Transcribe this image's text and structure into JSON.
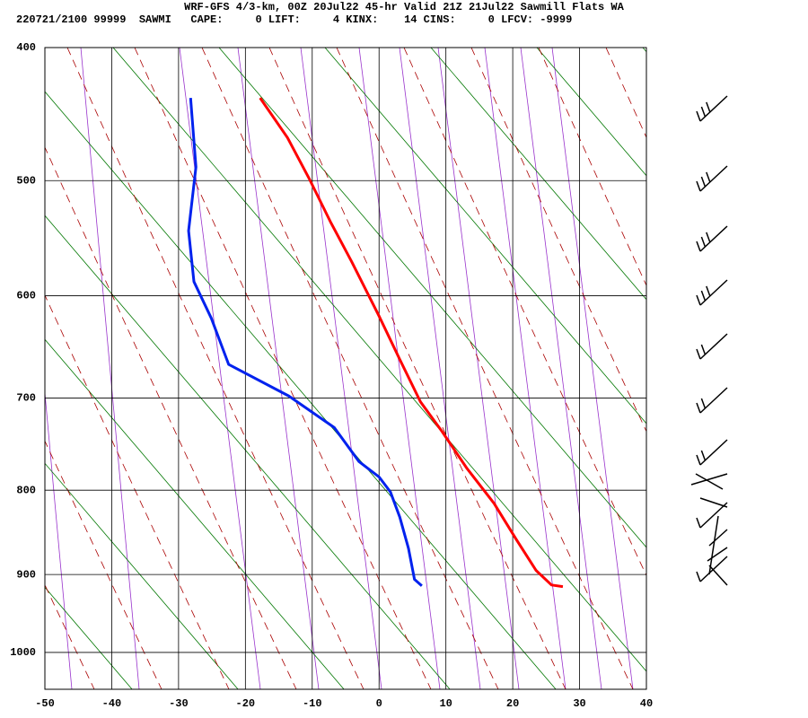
{
  "chart_data": {
    "type": "skewt",
    "title": "WRF-GFS 4/3-km, 00Z 20Jul22 45-hr Valid 21Z 21Jul22 Sawmill Flats WA",
    "subtitle": "220721/2100 99999  SAWMI   CAPE:     0 LIFT:     4 KINX:    14 CINS:     0 LFCV: -9999",
    "xlim": [
      -50,
      40
    ],
    "xticks": [
      -50,
      -40,
      -30,
      -20,
      -10,
      0,
      10,
      20,
      30,
      40
    ],
    "ylim": [
      1050,
      400
    ],
    "yticks": [
      400,
      500,
      600,
      700,
      800,
      900,
      1000
    ],
    "y_scale_exponent": 0.286,
    "grid": true,
    "series": [
      {
        "name": "Temperature",
        "color": "#ff0000",
        "x": [
          -17.8,
          -13.7,
          -10.4,
          -7.3,
          -4.1,
          0,
          3.1,
          6.2,
          9.4,
          13.1,
          17.2,
          20.5,
          23.5,
          25.8,
          27.5
        ],
        "y": [
          436,
          466,
          499,
          534,
          569,
          619,
          661,
          704,
          735,
          775,
          815,
          857,
          895,
          913,
          915
        ]
      },
      {
        "name": "Dewpoint",
        "color": "#0022ee",
        "x": [
          -28.2,
          -27.4,
          -28.5,
          -27.7,
          -25.1,
          -22.5,
          -13.5,
          -6.7,
          -3,
          0,
          1.7,
          3.1,
          4.4,
          5.3,
          6.4
        ],
        "y": [
          436,
          489,
          542,
          587,
          621,
          666,
          698,
          731,
          768,
          785,
          802,
          831,
          868,
          906,
          914
        ]
      }
    ]
  }
}
